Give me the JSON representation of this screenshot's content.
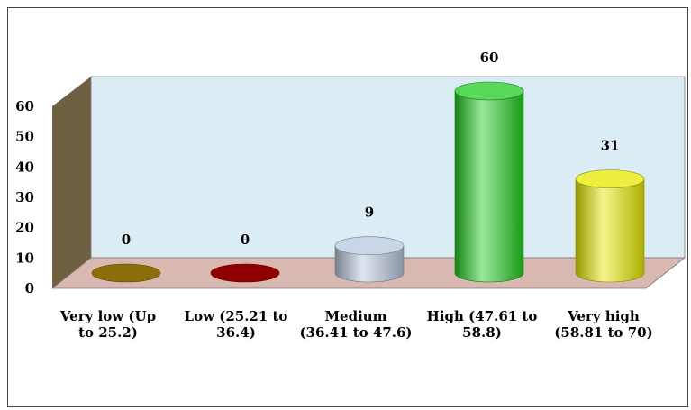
{
  "chart_data": {
    "type": "bar",
    "title": "",
    "xlabel": "",
    "ylabel": "",
    "ylim": [
      0,
      60
    ],
    "yticks": [
      "0",
      "10",
      "20",
      "30",
      "40",
      "50",
      "60"
    ],
    "grid": false,
    "legend": "none",
    "categories": [
      "Very low (Up to 25.2)",
      "Low (25.21 to 36.4)",
      "Medium (36.41 to 47.6)",
      "High (47.61 to 58.8)",
      "Very high (58.81 to 70)"
    ],
    "category_lines": [
      [
        "Very low (Up",
        "to 25.2)"
      ],
      [
        "Low (25.21 to",
        "36.4)"
      ],
      [
        "Medium",
        "(36.41 to 47.6)"
      ],
      [
        "High (47.61 to",
        "58.8)"
      ],
      [
        "Very high",
        "(58.81 to 70)"
      ]
    ],
    "values": [
      0,
      0,
      9,
      60,
      31
    ],
    "data_labels": [
      "0",
      "0",
      "9",
      "60",
      "31"
    ],
    "colors": [
      "#9a7a0a",
      "#a00000",
      "#b8c8dc",
      "#22cc22",
      "#e8e800"
    ],
    "wall_color": "#dcecf4",
    "floor_color": "#d8b8b0",
    "side_wall_color": "#6e6040"
  }
}
